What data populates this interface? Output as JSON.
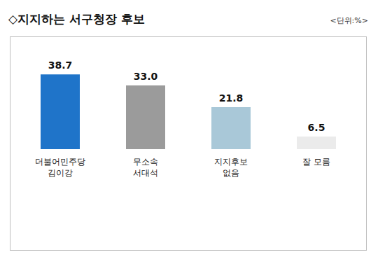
{
  "chart_data": {
    "type": "bar",
    "title": "◇지지하는 서구청장 후보",
    "subtitle": "<단위:%>",
    "categories": [
      "더불어민주당\n김이강",
      "무소속\n서대석",
      "지지후보\n없음",
      "잘 모름"
    ],
    "values": [
      38.7,
      33.0,
      21.8,
      6.5
    ],
    "value_labels": [
      "38.7",
      "33.0",
      "21.8",
      "6.5"
    ],
    "colors": [
      "#1f74c9",
      "#9b9b9b",
      "#a9c8d8",
      "#ebebeb"
    ],
    "ylim": [
      0,
      45
    ],
    "data_labels": true,
    "tick_labels": "x",
    "grid": false
  }
}
